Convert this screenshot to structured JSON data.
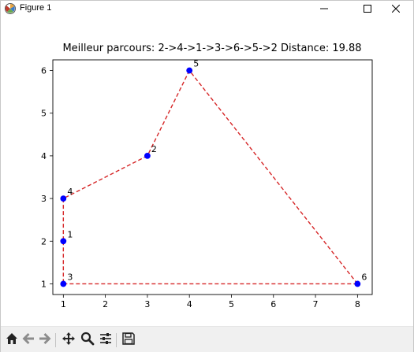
{
  "window": {
    "title": "Figure 1",
    "app_icon": "matplotlib-icon",
    "controls": [
      "minimize-icon",
      "maximize-icon",
      "close-icon"
    ]
  },
  "toolbar": {
    "items": [
      "home-icon",
      "back-icon",
      "forward-icon",
      "pan-icon",
      "zoom-icon",
      "configure-subplots-icon",
      "save-icon"
    ]
  },
  "chart_data": {
    "type": "line",
    "title": "Meilleur parcours: 2->4->1->3->6->5->2 Distance: 19.88",
    "xlabel": "",
    "ylabel": "",
    "xlim": [
      0.75,
      8.35
    ],
    "ylim": [
      0.75,
      6.25
    ],
    "xticks": [
      1,
      2,
      3,
      4,
      5,
      6,
      7,
      8
    ],
    "yticks": [
      1,
      2,
      3,
      4,
      5,
      6
    ],
    "grid": false,
    "points": [
      {
        "label": "1",
        "x": 1,
        "y": 2
      },
      {
        "label": "2",
        "x": 3,
        "y": 4
      },
      {
        "label": "3",
        "x": 1,
        "y": 1
      },
      {
        "label": "4",
        "x": 1,
        "y": 3
      },
      {
        "label": "5",
        "x": 4,
        "y": 6
      },
      {
        "label": "6",
        "x": 8,
        "y": 1
      }
    ],
    "route": [
      "2",
      "4",
      "1",
      "3",
      "6",
      "5",
      "2"
    ],
    "line_color": "#d62728",
    "line_style": "dashed",
    "marker_color": "#0000ff"
  }
}
